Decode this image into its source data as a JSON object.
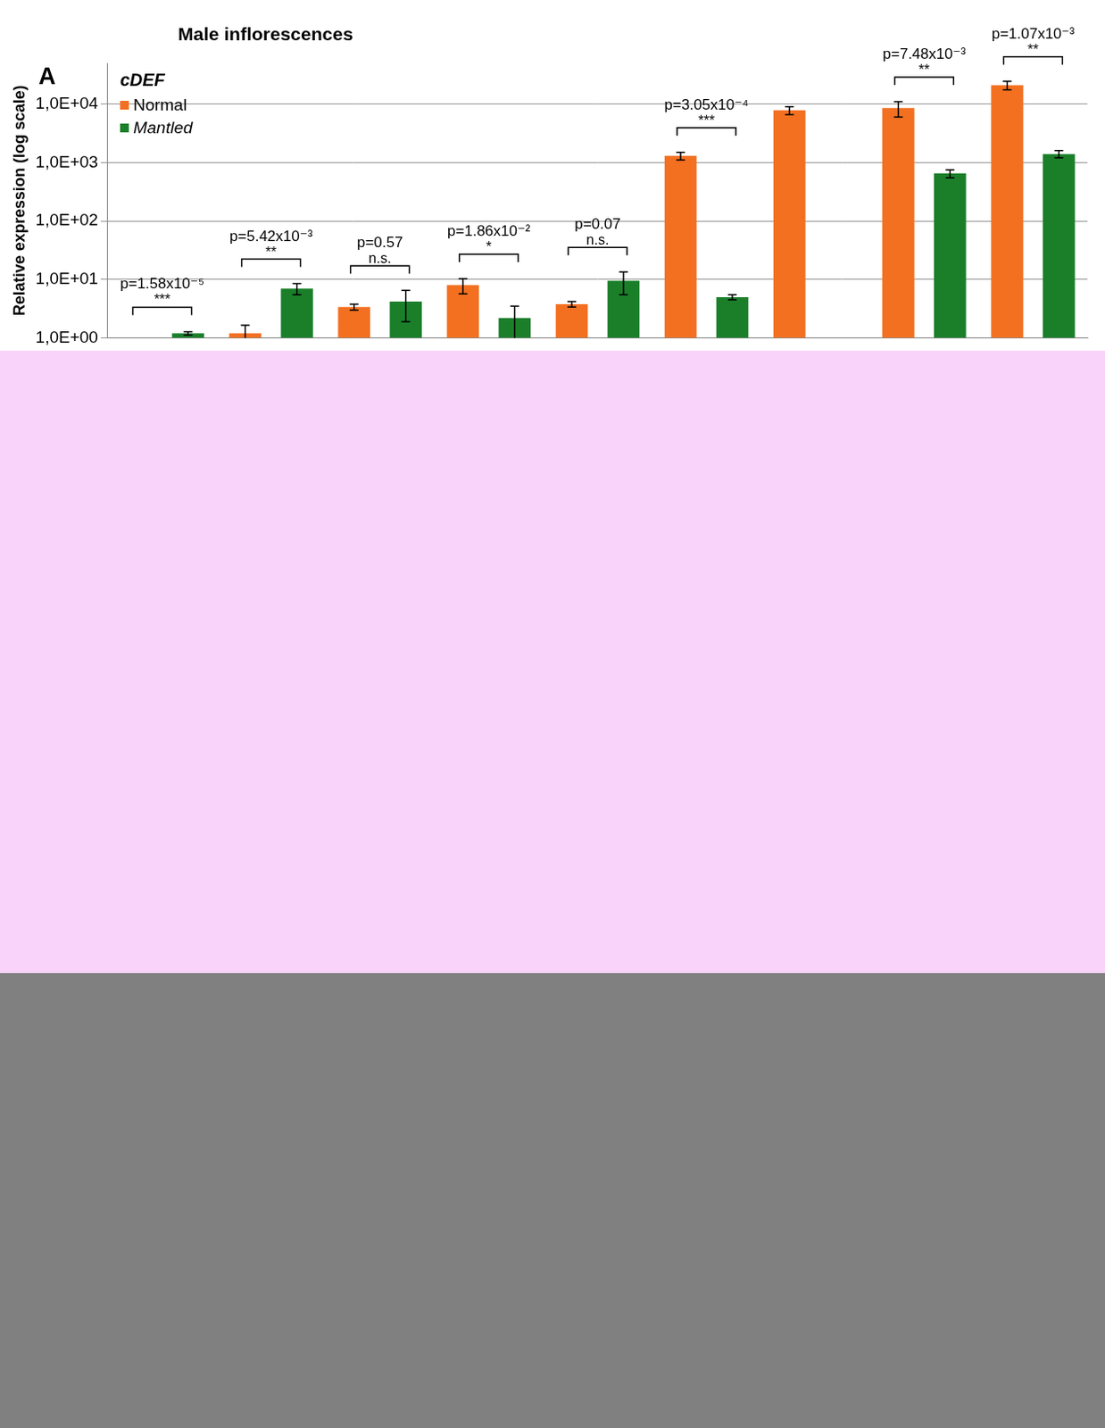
{
  "chart_data": {
    "type": "bar",
    "title": "Male inflorescences",
    "panel_label": "A",
    "gene_label": "cDEF",
    "y_label": "Relative expression (log scale)",
    "categories": [
      null,
      null,
      null,
      null,
      null,
      null,
      null,
      null,
      null
    ],
    "series": [
      {
        "name": "Normal",
        "color": "#F37021",
        "values": [
          null,
          1.2,
          3.4,
          8,
          3.8,
          1300,
          7800,
          8500,
          21000
        ],
        "errors": [
          null,
          0.45,
          0.4,
          2.3,
          0.4,
          200,
          1200,
          2500,
          3500
        ]
      },
      {
        "name": "Mantled",
        "color": "#1B7F2A",
        "values": [
          1.2,
          7,
          4.2,
          2.2,
          9.5,
          5,
          null,
          650,
          1400
        ],
        "errors": [
          0.08,
          1.5,
          2.3,
          1.3,
          4,
          0.5,
          null,
          100,
          200
        ]
      }
    ],
    "annotations": [
      {
        "p": "p=1.58x10⁻⁵",
        "significance": "***"
      },
      {
        "p": "p=5.42x10⁻³",
        "significance": "**"
      },
      {
        "p": "p=0.57",
        "significance": "n.s."
      },
      {
        "p": "p=1.86x10⁻²",
        "significance": "*"
      },
      {
        "p": "p=0.07",
        "significance": "n.s."
      },
      {
        "p": "p=3.05x10⁻⁴",
        "significance": "***"
      },
      null,
      {
        "p": "p=7.48x10⁻³",
        "significance": "**"
      },
      {
        "p": "p=1.07x10⁻³",
        "significance": "**"
      }
    ],
    "log": "y",
    "ylim": [
      1,
      50000
    ],
    "yticks": [
      {
        "value": 1,
        "label": "1,0E+00"
      },
      {
        "value": 10,
        "label": "1,0E+01"
      },
      {
        "value": 100,
        "label": "1,0E+02"
      },
      {
        "value": 1000,
        "label": "1,0E+03"
      },
      {
        "value": 10000,
        "label": "1,0E+04"
      }
    ],
    "grid": true,
    "legend": "upper left",
    "tick_labels": "y"
  }
}
